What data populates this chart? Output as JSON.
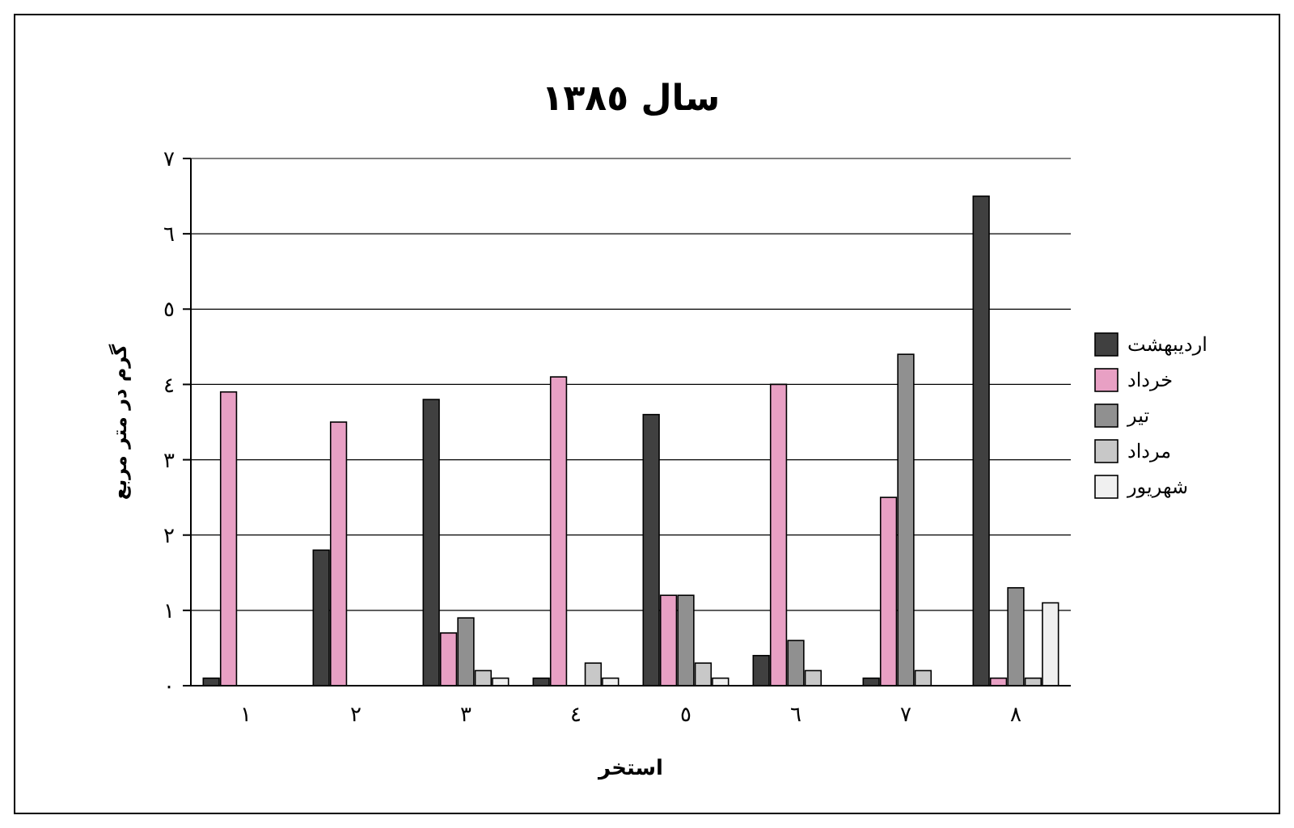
{
  "chart_data": {
    "type": "bar",
    "title": "سال ١٣٨٥",
    "xlabel": "استخر",
    "ylabel": "گرم در متر مربع",
    "categories": [
      "١",
      "٢",
      "٣",
      "٤",
      "٥",
      "٦",
      "٧",
      "٨"
    ],
    "series": [
      {
        "name": "اردیبهشت",
        "color": "#404040",
        "values": [
          0.1,
          1.8,
          3.8,
          0.1,
          3.6,
          0.4,
          0.1,
          6.5
        ]
      },
      {
        "name": "خرداد",
        "color": "#e8a0c4",
        "values": [
          3.9,
          3.5,
          0.7,
          4.1,
          1.2,
          4.0,
          2.5,
          0.1
        ]
      },
      {
        "name": "تیر",
        "color": "#909090",
        "values": [
          0,
          0,
          0.9,
          0,
          1.2,
          0.6,
          4.4,
          1.3
        ]
      },
      {
        "name": "مرداد",
        "color": "#c8c8c8",
        "values": [
          0,
          0,
          0.2,
          0.3,
          0.3,
          0.2,
          0.2,
          0.1
        ]
      },
      {
        "name": "شهریور",
        "color": "#f0f0f0",
        "values": [
          0,
          0,
          0.1,
          0.1,
          0.1,
          0,
          0,
          1.1
        ]
      }
    ],
    "ylim": [
      0,
      7
    ],
    "yticks": [
      {
        "value": 0,
        "label": "٠"
      },
      {
        "value": 1,
        "label": "١"
      },
      {
        "value": 2,
        "label": "٢"
      },
      {
        "value": 3,
        "label": "٣"
      },
      {
        "value": 4,
        "label": "٤"
      },
      {
        "value": 5,
        "label": "٥"
      },
      {
        "value": 6,
        "label": "٦"
      },
      {
        "value": 7,
        "label": "٧"
      }
    ],
    "grid": "y",
    "legend": "right"
  }
}
